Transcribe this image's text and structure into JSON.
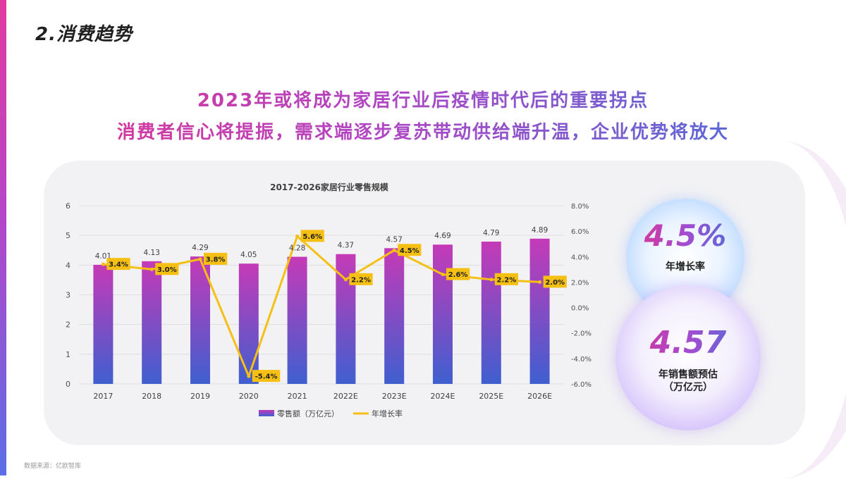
{
  "page": {
    "section_title": "2.消费趋势",
    "headline_line1": "2023年或将成为家居行业后疫情时代后的重要拐点",
    "headline_line2": "消费者信心将提振，需求端逐步复苏带动供给端升温，企业优势将放大",
    "source": "数据来源：亿欧智库"
  },
  "bubbles": {
    "growth_value": "4.5%",
    "growth_label": "年增长率",
    "sales_value": "4.57",
    "sales_label_line1": "年销售额预估",
    "sales_label_line2": "（万亿元）"
  },
  "colors": {
    "bar_top": "#c53ab7",
    "bar_bottom": "#3f5fcf",
    "line": "#f5bf14",
    "label_box": "#f5bf14",
    "accent_pink": "#e0318e",
    "accent_blue": "#3f73dc"
  },
  "chart_data": {
    "type": "bar",
    "title": "2017-2026家居行业零售规模",
    "categories": [
      "2017",
      "2018",
      "2019",
      "2020",
      "2021",
      "2022E",
      "2023E",
      "2024E",
      "2025E",
      "2026E"
    ],
    "series": [
      {
        "name": "零售额（万亿元）",
        "type": "bar",
        "axis": "left",
        "values": [
          4.01,
          4.13,
          4.29,
          4.05,
          4.28,
          4.37,
          4.57,
          4.69,
          4.79,
          4.89
        ],
        "labels": [
          "4.01",
          "4.13",
          "4.29",
          "4.05",
          "4.28",
          "4.37",
          "4.57",
          "4.69",
          "4.79",
          "4.89"
        ]
      },
      {
        "name": "年增长率",
        "type": "line",
        "axis": "right",
        "values": [
          3.4,
          3.0,
          3.8,
          -5.4,
          5.6,
          2.2,
          4.5,
          2.6,
          2.2,
          2.0
        ],
        "labels": [
          "3.4%",
          "3.0%",
          "3.8%",
          "-5.4%",
          "5.6%",
          "2.2%",
          "4.5%",
          "2.6%",
          "2.2%",
          "2.0%"
        ]
      }
    ],
    "y_left": {
      "min": 0,
      "max": 6,
      "ticks": [
        "0",
        "1",
        "2",
        "3",
        "4",
        "5",
        "6"
      ]
    },
    "y_right": {
      "min": -6,
      "max": 8,
      "ticks": [
        "-6.0%",
        "-4.0%",
        "-2.0%",
        "0.0%",
        "2.0%",
        "4.0%",
        "6.0%",
        "8.0%"
      ]
    },
    "grid": true,
    "legend": "bottom"
  }
}
